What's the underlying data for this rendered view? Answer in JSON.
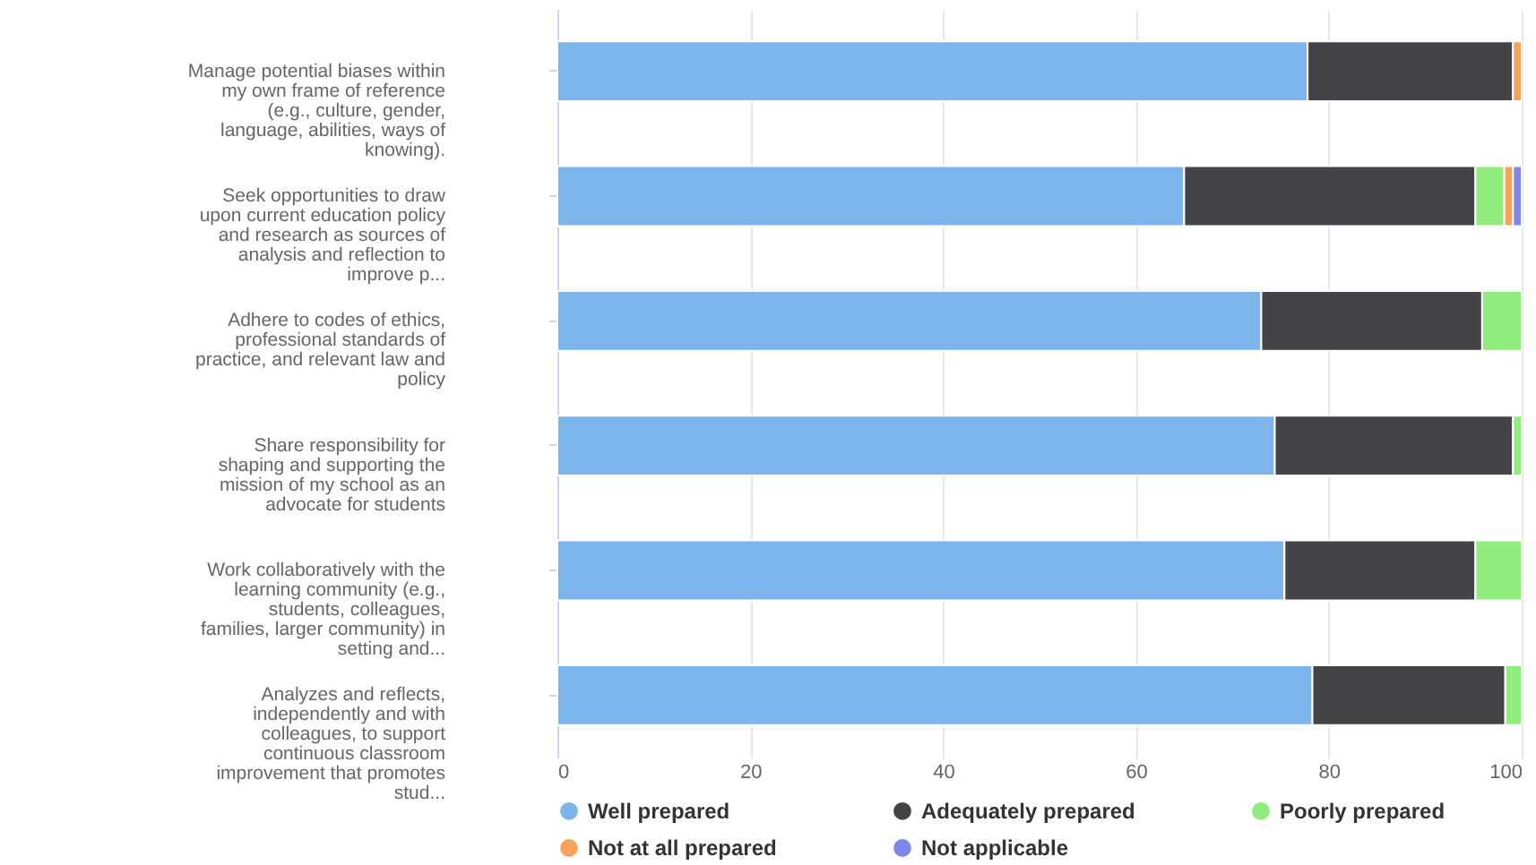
{
  "chart_data": {
    "type": "bar",
    "orientation": "horizontal",
    "stacked": true,
    "categories": [
      "Manage potential biases within my own frame of reference (e.g., culture, gender, language, abilities, ways of knowing).",
      "Seek opportunities to draw upon current education policy and research as sources of analysis and reflection to improve p...",
      "Adhere to codes of ethics, professional standards of practice, and relevant law and policy",
      "Share responsibility for shaping and supporting the mission of my school as an advocate for students",
      "Work collaboratively with the learning community (e.g., students, colleagues, families, larger community) in setting and...",
      "Analyzes and reflects, independently and with colleagues, to support continuous classroom improvement that promotes stud..."
    ],
    "series": [
      {
        "name": "Well prepared",
        "color": "#7cb5ec",
        "values": [
          77.8,
          65.0,
          73.0,
          74.4,
          75.4,
          78.3
        ]
      },
      {
        "name": "Adequately prepared",
        "color": "#434348",
        "values": [
          21.3,
          30.2,
          22.9,
          24.7,
          19.8,
          20.0
        ]
      },
      {
        "name": "Poorly prepared",
        "color": "#90ed7d",
        "values": [
          0,
          3.0,
          4.1,
          0.9,
          4.8,
          1.7
        ]
      },
      {
        "name": "Not at all prepared",
        "color": "#f7a35c",
        "values": [
          0.9,
          0.9,
          0,
          0,
          0,
          0
        ]
      },
      {
        "name": "Not applicable",
        "color": "#8085e9",
        "values": [
          0,
          0.9,
          0,
          0,
          0,
          0
        ]
      }
    ],
    "xlim": [
      0,
      100
    ],
    "xticks": [
      0,
      20,
      40,
      60,
      80,
      100
    ],
    "grid": "x",
    "legend": "bottom"
  }
}
